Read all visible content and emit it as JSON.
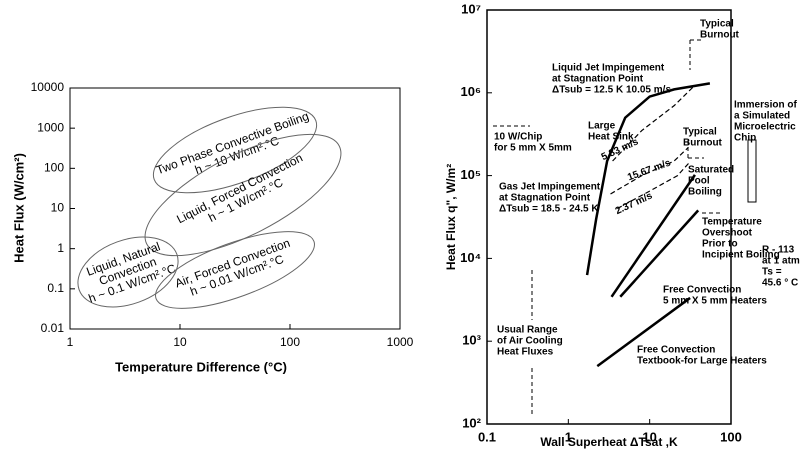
{
  "chart_data": [
    {
      "type": "regions",
      "x_label": "Temperature Difference (°C)",
      "y_label": "Heat Flux (W/cm²)",
      "log_x": true,
      "log_y": true,
      "xlim": [
        1,
        1000
      ],
      "xticks": [
        1,
        10,
        100,
        1000
      ],
      "ylim": [
        0.01,
        10000
      ],
      "yticks": [
        0.01,
        0.1,
        1,
        10,
        100,
        1000,
        10000
      ],
      "regions": [
        {
          "lines": [
            "Two Phase Convective Boiling",
            "h ~ 10 W/cm².°C"
          ]
        },
        {
          "lines": [
            "Liquid, Forced Convection",
            "h ~ 1 W/cm².°C"
          ]
        },
        {
          "lines": [
            "Liquid, Natural",
            "Convection",
            "h ~ 0.1 W/cm².°C"
          ]
        },
        {
          "lines": [
            "Air, Forced Convection",
            "h ~ 0.01 W/cm².°C"
          ]
        }
      ]
    },
    {
      "type": "line",
      "x_label": "Wall Superheat ΔTsat ,K",
      "y_label": "Heat Flux q\", W/m²",
      "log_x": true,
      "log_y": true,
      "xlim": [
        0.1,
        100
      ],
      "xticks": [
        0.1,
        1,
        10,
        100
      ],
      "ylim": [
        100,
        10000000
      ],
      "yticks": [
        {
          "value": 100,
          "label": "10²"
        },
        {
          "value": 1000,
          "label": "10³"
        },
        {
          "value": 10000,
          "label": "10⁴"
        },
        {
          "value": 100000,
          "label": "10⁵"
        },
        {
          "value": 1000000,
          "label": "10⁶"
        },
        {
          "value": 10000000,
          "label": "10⁷"
        }
      ],
      "series": [
        {
          "color": "#000000",
          "dashed": false,
          "x": [
            1.7,
            2.2,
            3,
            5,
            10,
            20,
            55
          ],
          "values": [
            6300,
            30000,
            150000,
            500000,
            900000,
            1100000,
            1300000
          ]
        },
        {
          "color": "#000000",
          "dashed": false,
          "x": [
            3.4,
            36
          ],
          "values": [
            3440,
            102000
          ]
        },
        {
          "color": "#000000",
          "dashed": false,
          "x": [
            4.35,
            39.5
          ],
          "values": [
            3440,
            38000
          ]
        },
        {
          "color": "#000000",
          "dashed": false,
          "x": [
            2.27,
            31.4
          ],
          "values": [
            500,
            3330
          ]
        },
        {
          "color": "#000000",
          "dashed": true,
          "x": [
            3.5,
            8,
            20,
            35
          ],
          "values": [
            150000,
            350000,
            700000,
            1200000
          ]
        },
        {
          "color": "#000000",
          "dashed": true,
          "x": [
            3.3,
            8,
            20,
            30
          ],
          "values": [
            60000,
            100000,
            150000,
            220000
          ]
        },
        {
          "color": "#000000",
          "dashed": true,
          "x": [
            4,
            10,
            22,
            30
          ],
          "values": [
            40000,
            65000,
            100000,
            140000
          ]
        }
      ],
      "annotations": [
        {
          "lines": [
            "Typical",
            "Burnout"
          ]
        },
        {
          "lines": [
            "Liquid Jet Impingement",
            "at Stagnation Point",
            "ΔTsub = 12.5 K 10.05 m/s"
          ]
        },
        {
          "lines": [
            "Immersion of",
            "a Simulated",
            "Microelectric",
            "Chip"
          ]
        },
        {
          "lines": [
            "10 W/Chip",
            "for 5 mm X 5mm"
          ]
        },
        {
          "lines": [
            "Large",
            "Heat Sink"
          ]
        },
        {
          "lines": [
            "5.83 m/s"
          ]
        },
        {
          "lines": [
            "Typical",
            "Burnout"
          ]
        },
        {
          "lines": [
            "15.67 m/s"
          ]
        },
        {
          "lines": [
            "Saturated",
            "Pool",
            "Boiling"
          ]
        },
        {
          "lines": [
            "Gas Jet Impingement",
            "at Stagnation Point",
            "ΔTsub = 18.5 - 24.5 K"
          ]
        },
        {
          "lines": [
            "2.37 m/s"
          ]
        },
        {
          "lines": [
            "R - 113",
            "at 1 atm",
            "Ts =",
            "45.6 ° C"
          ]
        },
        {
          "lines": [
            "Temperature",
            "Overshoot",
            "Prior to",
            "Incipient Boiling"
          ]
        },
        {
          "lines": [
            "Free Convection",
            "5 mm X 5 mm Heaters"
          ]
        },
        {
          "lines": [
            "Usual Range",
            "of Air Cooling",
            "Heat Fluxes"
          ]
        },
        {
          "lines": [
            "Free Convection",
            "Textbook-for Large Heaters"
          ]
        }
      ]
    }
  ]
}
